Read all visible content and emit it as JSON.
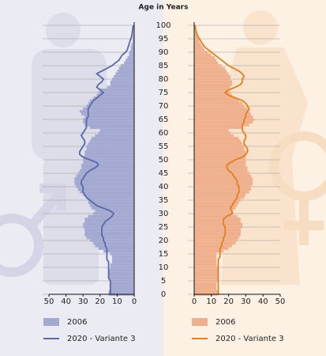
{
  "chart_data": {
    "type": "pyramid",
    "title": "Age in Years",
    "y": [
      0,
      1,
      2,
      3,
      4,
      5,
      6,
      7,
      8,
      9,
      10,
      11,
      12,
      13,
      14,
      15,
      16,
      17,
      18,
      19,
      20,
      21,
      22,
      23,
      24,
      25,
      26,
      27,
      28,
      29,
      30,
      31,
      32,
      33,
      34,
      35,
      36,
      37,
      38,
      39,
      40,
      41,
      42,
      43,
      44,
      45,
      46,
      47,
      48,
      49,
      50,
      51,
      52,
      53,
      54,
      55,
      56,
      57,
      58,
      59,
      60,
      61,
      62,
      63,
      64,
      65,
      66,
      67,
      68,
      69,
      70,
      71,
      72,
      73,
      74,
      75,
      76,
      77,
      78,
      79,
      80,
      81,
      82,
      83,
      84,
      85,
      86,
      87,
      88,
      89,
      90,
      91,
      92,
      93,
      94,
      95,
      96,
      97,
      98,
      99,
      100
    ],
    "ylim": [
      0,
      100
    ],
    "yticks": [
      0,
      5,
      10,
      15,
      20,
      25,
      30,
      35,
      40,
      45,
      50,
      55,
      60,
      65,
      70,
      75,
      80,
      85,
      90,
      95,
      100
    ],
    "xlim": [
      0,
      50
    ],
    "xticks": [
      0,
      10,
      20,
      30,
      40,
      50
    ],
    "panels": [
      {
        "direction": "left",
        "series": [
          {
            "name": "2006",
            "type": "bar",
            "color": "#a3a9d1",
            "values": [
              15,
              15,
              14,
              14,
              14,
              14,
              15,
              15,
              15,
              15,
              14,
              14,
              13,
              13,
              13,
              14,
              18,
              21,
              23,
              24,
              26,
              28,
              29,
              29,
              29,
              30,
              30,
              29,
              29,
              27,
              24,
              23,
              25,
              26,
              27,
              27,
              28,
              30,
              32,
              33,
              34,
              35,
              35,
              35,
              34,
              33,
              32,
              31,
              31,
              30,
              30,
              30,
              29,
              29,
              28,
              28,
              27,
              26,
              25,
              23,
              21,
              20,
              26,
              29,
              30,
              30,
              29,
              31,
              32,
              30,
              28,
              27,
              26,
              24,
              22,
              21,
              20,
              16,
              14,
              14,
              13,
              12,
              11,
              10,
              9,
              8,
              6,
              5,
              4,
              3,
              3,
              2,
              2,
              1.5,
              1,
              1,
              0.8,
              0.6,
              0.4,
              0.3,
              0.2
            ]
          },
          {
            "name": "2020 - Variante 3",
            "type": "line",
            "color": "#5b68a8",
            "values": [
              14,
              14,
              14,
              14,
              14,
              14,
              15,
              15,
              15,
              15,
              15,
              15,
              15,
              16,
              16,
              16,
              16,
              16,
              17,
              17,
              18,
              18,
              19,
              19,
              19,
              19,
              18,
              17,
              15,
              13,
              12,
              14,
              18,
              22,
              24,
              26,
              28,
              29,
              30,
              30,
              30,
              31,
              31,
              30,
              29,
              28,
              26,
              23,
              21,
              22,
              26,
              30,
              32,
              32,
              31,
              30,
              29,
              29,
              30,
              31,
              30,
              29,
              28,
              28,
              28,
              28,
              27,
              27,
              27,
              27,
              26,
              25,
              24,
              22,
              20,
              18,
              20,
              22,
              21,
              19,
              18,
              20,
              22,
              19,
              16,
              13,
              11,
              9,
              8,
              7,
              5,
              4,
              3.5,
              3,
              2.5,
              2,
              1.5,
              1.2,
              1,
              0.8,
              0.5
            ]
          }
        ]
      },
      {
        "direction": "right",
        "series": [
          {
            "name": "2006",
            "type": "bar",
            "color": "#efb08e",
            "values": [
              14,
              14,
              13,
              13,
              13,
              14,
              14,
              14,
              14,
              14,
              14,
              13,
              13,
              13,
              13,
              13,
              17,
              20,
              22,
              24,
              25,
              26,
              27,
              27,
              27,
              28,
              28,
              27,
              27,
              25,
              23,
              22,
              24,
              25,
              26,
              27,
              29,
              30,
              32,
              33,
              33,
              34,
              34,
              34,
              33,
              32,
              31,
              31,
              30,
              30,
              30,
              30,
              30,
              30,
              29,
              29,
              28,
              27,
              26,
              23,
              21,
              20,
              28,
              32,
              34,
              35,
              34,
              33,
              32,
              31,
              29,
              28,
              26,
              24,
              22,
              21,
              20,
              21,
              22,
              22,
              21,
              21,
              20,
              19,
              18,
              16,
              14,
              13,
              12,
              10,
              8,
              6,
              5,
              4,
              3,
              3,
              2,
              1.5,
              1,
              0.7,
              0.5
            ]
          },
          {
            "name": "2020 - Variante 3",
            "type": "line",
            "color": "#e07f20",
            "values": [
              14,
              14,
              14,
              14,
              14,
              14,
              14,
              14,
              14,
              14,
              14,
              14,
              14,
              14,
              15,
              15,
              15,
              15,
              16,
              16,
              17,
              17,
              18,
              18,
              18,
              18,
              17,
              17,
              17,
              19,
              22,
              22,
              21,
              22,
              23,
              24,
              25,
              25,
              26,
              26,
              26,
              25,
              25,
              24,
              23,
              22,
              20,
              19,
              19,
              21,
              24,
              28,
              30,
              31,
              31,
              30,
              29,
              29,
              30,
              30,
              29,
              28,
              28,
              28,
              29,
              29,
              30,
              30,
              31,
              32,
              31,
              30,
              28,
              24,
              20,
              18,
              20,
              24,
              27,
              28,
              28,
              29,
              28,
              26,
              23,
              20,
              18,
              16,
              14,
              12,
              10,
              8,
              6,
              5,
              4,
              3,
              2,
              1.5,
              1,
              0.8,
              0.5
            ]
          }
        ]
      }
    ]
  }
}
